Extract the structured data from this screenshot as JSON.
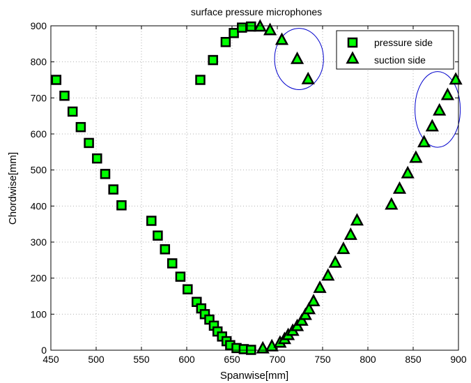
{
  "chart_data": {
    "type": "scatter",
    "title": "surface pressure microphones",
    "xlabel": "Spanwise[mm]",
    "ylabel": "Chordwise[mm]",
    "xlim": [
      450,
      900
    ],
    "ylim": [
      0,
      900
    ],
    "xticks": [
      450,
      500,
      550,
      600,
      650,
      700,
      750,
      800,
      850,
      900
    ],
    "yticks": [
      0,
      100,
      200,
      300,
      400,
      500,
      600,
      700,
      800,
      900
    ],
    "grid": true,
    "legend_position": "top-right",
    "marker_fill": "#00ff00",
    "marker_edge": "#000000",
    "annotation_color": "#0000cc",
    "series": [
      {
        "name": "pressure side",
        "marker": "square",
        "points": [
          [
            456,
            750
          ],
          [
            465,
            706
          ],
          [
            474,
            662
          ],
          [
            483,
            619
          ],
          [
            492,
            575
          ],
          [
            501,
            532
          ],
          [
            510,
            489
          ],
          [
            519,
            446
          ],
          [
            528,
            402
          ],
          [
            561,
            359
          ],
          [
            568,
            318
          ],
          [
            576,
            280
          ],
          [
            584,
            241
          ],
          [
            593,
            204
          ],
          [
            601,
            169
          ],
          [
            611,
            134
          ],
          [
            616,
            116
          ],
          [
            620,
            100
          ],
          [
            625,
            85
          ],
          [
            630,
            68
          ],
          [
            634,
            52
          ],
          [
            639,
            38
          ],
          [
            644,
            25
          ],
          [
            648,
            14
          ],
          [
            655,
            6
          ],
          [
            663,
            3
          ],
          [
            671,
            1
          ],
          [
            615,
            750
          ],
          [
            629,
            805
          ],
          [
            643,
            855
          ],
          [
            652,
            880
          ],
          [
            661,
            895
          ],
          [
            671,
            898
          ]
        ]
      },
      {
        "name": "suction side",
        "marker": "triangle",
        "points": [
          [
            681,
            898
          ],
          [
            692,
            888
          ],
          [
            705,
            861
          ],
          [
            722,
            808
          ],
          [
            734,
            752
          ],
          [
            684,
            5
          ],
          [
            694,
            11
          ],
          [
            703,
            21
          ],
          [
            708,
            31
          ],
          [
            712,
            42
          ],
          [
            717,
            54
          ],
          [
            722,
            67
          ],
          [
            727,
            82
          ],
          [
            731,
            98
          ],
          [
            735,
            114
          ],
          [
            740,
            136
          ],
          [
            747,
            173
          ],
          [
            756,
            207
          ],
          [
            764,
            243
          ],
          [
            773,
            281
          ],
          [
            781,
            320
          ],
          [
            788,
            360
          ],
          [
            826,
            404
          ],
          [
            835,
            448
          ],
          [
            844,
            491
          ],
          [
            853,
            534
          ],
          [
            862,
            577
          ],
          [
            871,
            621
          ],
          [
            879,
            665
          ],
          [
            888,
            708
          ],
          [
            897,
            751
          ]
        ]
      }
    ],
    "annotations": [
      {
        "type": "ellipse",
        "center": [
          724,
          808
        ],
        "radius_x": 27,
        "radius_y": 85
      },
      {
        "type": "ellipse",
        "center": [
          877,
          668
        ],
        "radius_x": 25,
        "radius_y": 105
      }
    ]
  }
}
